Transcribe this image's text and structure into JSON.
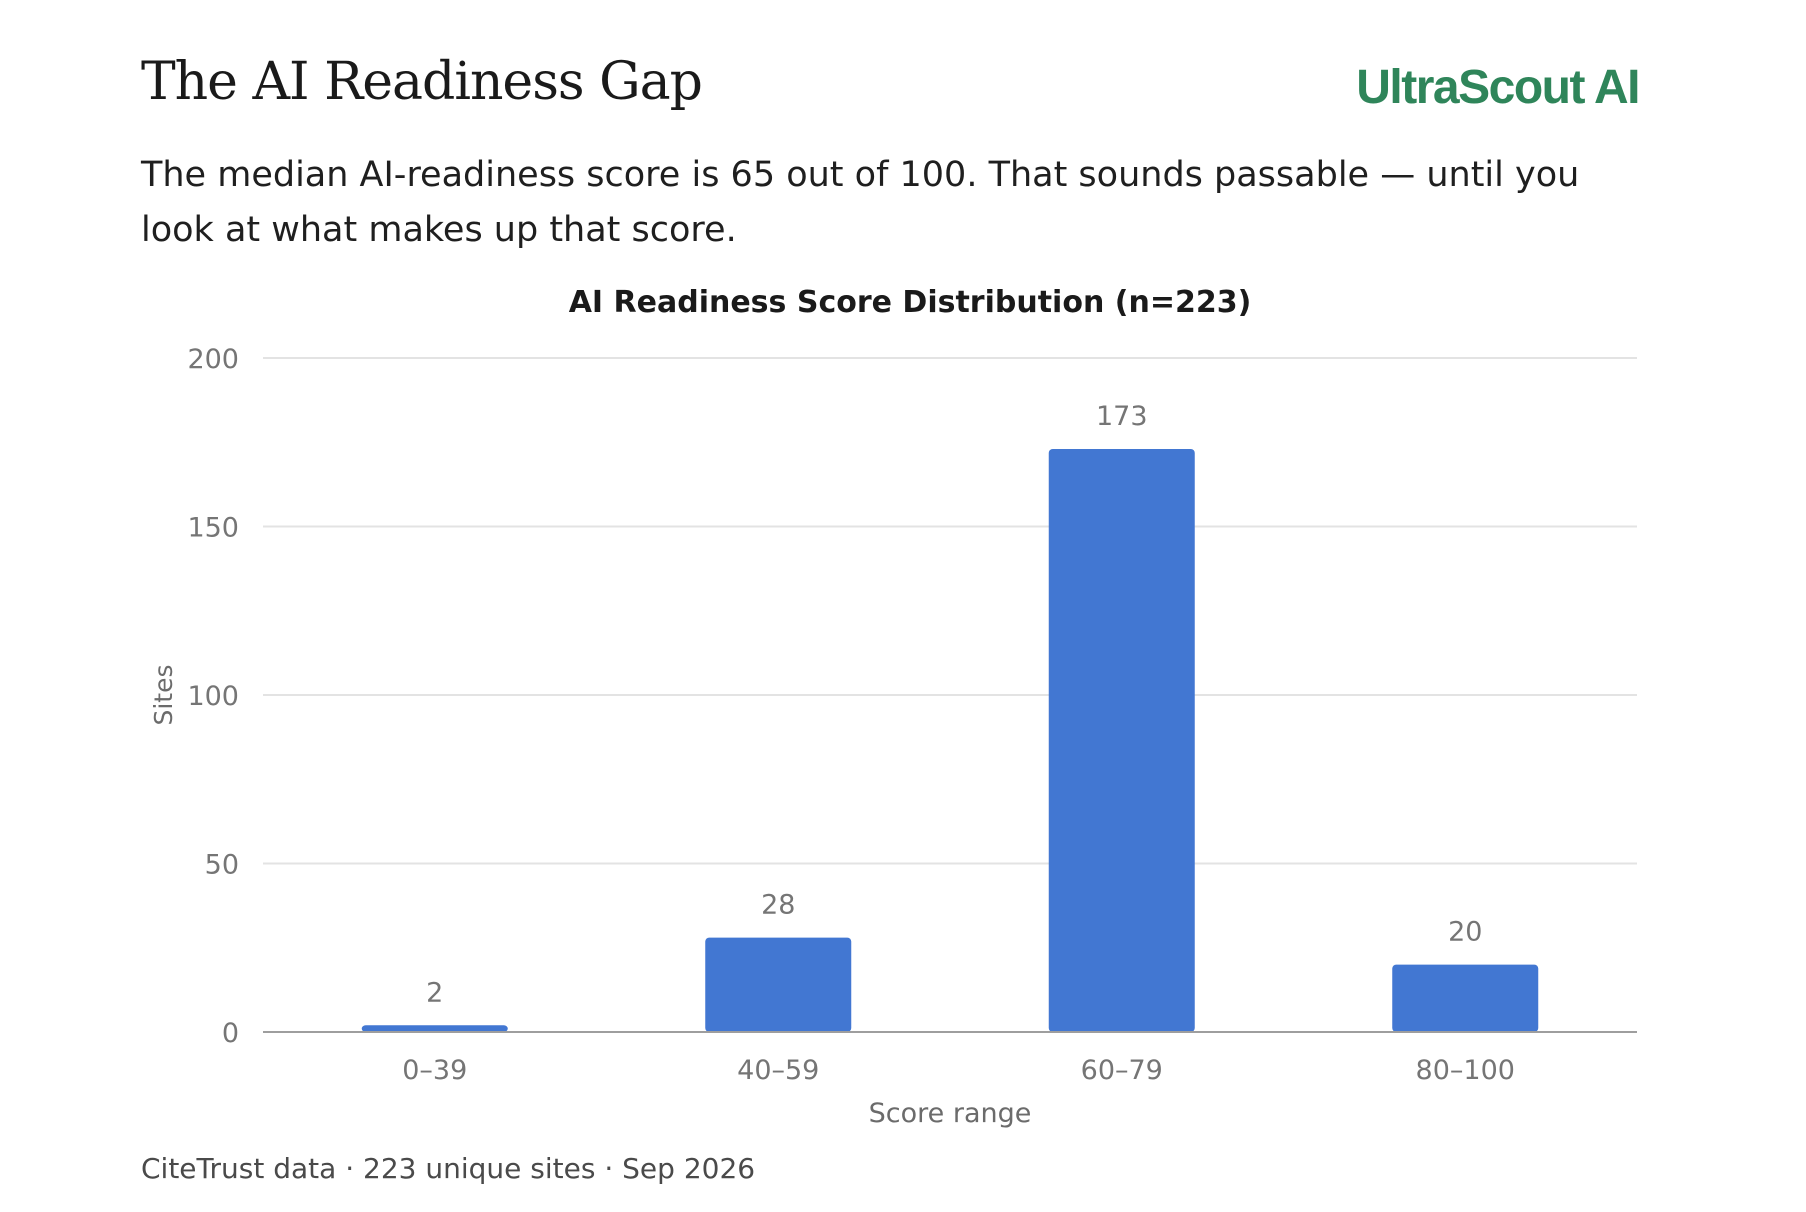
{
  "header": {
    "title": "The AI Readiness Gap",
    "brand": "UltraScout AI",
    "subtitle": "The median AI-readiness score is 65 out of 100. That sounds passable — until you look at what makes up that score."
  },
  "footer": {
    "source": "CiteTrust data · 223 unique sites · Sep 2026"
  },
  "colors": {
    "bar": "#4277d2",
    "brand": "#2f855a"
  },
  "chart_data": {
    "type": "bar",
    "title": "AI Readiness Score Distribution (n=223)",
    "xlabel": "Score range",
    "ylabel": "Sites",
    "categories": [
      "0–39",
      "40–59",
      "60–79",
      "80–100"
    ],
    "values": [
      2,
      28,
      173,
      20
    ],
    "ylim": [
      0,
      200
    ],
    "yticks": [
      0,
      50,
      100,
      150,
      200
    ],
    "grid": true,
    "legend": "none"
  }
}
